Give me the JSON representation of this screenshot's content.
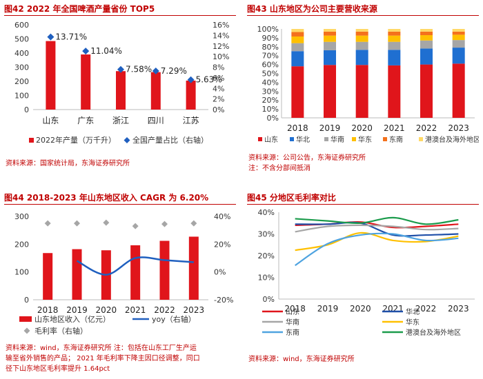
{
  "panels": {
    "p42": {
      "title": "图42 2022 年全国啤酒产量省份 TOP5",
      "source": "资料来源：国家统计局，东海证券研究所"
    },
    "p43": {
      "title": "图43 山东地区为公司主要营收来源",
      "source_line1": "资料来源：公司公告，东海证券研究所",
      "source_line2": "注：不含分部间抵消"
    },
    "p44": {
      "title": "图44 2018-2023 年山东地区收入 CAGR 为 6.20%",
      "source_lines": [
        "资料来源：wind，东海证券研究所 注：包括在山东工厂生产运",
        "输至省外销售的产品； 2021 年毛利率下降主因口径调整，同口",
        "径下山东地区毛利率提升 1.64pct"
      ]
    },
    "p45": {
      "title": "图45 分地区毛利率对比",
      "source": "资料来源：wind，东海证券研究所"
    }
  },
  "chart_data": [
    {
      "id": "fig42",
      "type": "bar",
      "categories": [
        "山东",
        "广东",
        "浙江",
        "四川",
        "江苏"
      ],
      "series": [
        {
          "name": "2022年产量（万千升）",
          "axis": "left",
          "values": [
            485,
            390,
            272,
            265,
            205
          ],
          "color": "#e0151b"
        },
        {
          "name": "全国产量占比（右轴）",
          "axis": "right",
          "marker": "diamond",
          "values": [
            13.71,
            11.04,
            7.58,
            7.29,
            5.63
          ],
          "labels": [
            "13.71%",
            "11.04%",
            "7.58%",
            "7.29%",
            "5.63%"
          ],
          "color": "#1f5fbf"
        }
      ],
      "ylim": [
        0,
        600
      ],
      "y_ticks": [
        "0",
        "100",
        "200",
        "300",
        "400",
        "500",
        "600"
      ],
      "y2lim": [
        0,
        16
      ],
      "y2_ticks": [
        "0%",
        "2%",
        "4%",
        "6%",
        "8%",
        "10%",
        "12%",
        "14%",
        "16%"
      ]
    },
    {
      "id": "fig43",
      "type": "bar",
      "stacked": true,
      "categories": [
        "2018",
        "2019",
        "2020",
        "2021",
        "2022",
        "2023"
      ],
      "series": [
        {
          "name": "山东",
          "values": [
            58,
            59.5,
            59.5,
            59,
            60,
            61
          ],
          "color": "#e0151b"
        },
        {
          "name": "华北",
          "values": [
            17,
            16.5,
            17,
            17.5,
            18,
            18
          ],
          "color": "#1f6fd1"
        },
        {
          "name": "华南",
          "values": [
            9,
            9.5,
            9,
            9,
            9,
            8.5
          ],
          "color": "#a6a6a6"
        },
        {
          "name": "华东",
          "values": [
            7.5,
            7,
            7,
            7,
            6,
            6
          ],
          "color": "#ffc000"
        },
        {
          "name": "东南",
          "values": [
            5,
            4.5,
            4.5,
            4.5,
            4,
            3.5
          ],
          "color": "#f4711c"
        },
        {
          "name": "港澳台及海外地区",
          "values": [
            3.5,
            3,
            3,
            3,
            3,
            3
          ],
          "color": "#ffd966"
        }
      ],
      "ylim": [
        0,
        100
      ],
      "y_ticks": [
        "0%",
        "10%",
        "20%",
        "30%",
        "40%",
        "50%",
        "60%",
        "70%",
        "80%",
        "90%",
        "100%"
      ]
    },
    {
      "id": "fig44",
      "type": "bar",
      "categories": [
        "2018",
        "2019",
        "2020",
        "2021",
        "2022",
        "2023"
      ],
      "series": [
        {
          "name": "山东地区收入（亿元）",
          "axis": "left",
          "kind": "bar",
          "values": [
            168,
            182,
            178,
            196,
            212,
            227
          ],
          "color": "#e0151b"
        },
        {
          "name": "yoy（右轴）",
          "axis": "right",
          "kind": "line",
          "values": [
            null,
            8.0,
            -2.0,
            10.0,
            8.5,
            7.0
          ],
          "color": "#1f5fbf"
        },
        {
          "name": "毛利率（右轴）",
          "axis": "right",
          "kind": "scatter",
          "marker": "diamond",
          "values": [
            35.0,
            35.0,
            35.5,
            33.0,
            34.5,
            35.0
          ],
          "color": "#a6a6a6"
        }
      ],
      "ylim": [
        0,
        300
      ],
      "y_ticks": [
        "0",
        "100",
        "200",
        "300"
      ],
      "y2lim": [
        -20,
        40
      ],
      "y2_ticks": [
        "-20%",
        "0%",
        "20%",
        "40%"
      ]
    },
    {
      "id": "fig45",
      "type": "line",
      "categories": [
        "2018",
        "2019",
        "2020",
        "2021",
        "2022",
        "2023"
      ],
      "series": [
        {
          "name": "山东",
          "values": [
            34.0,
            34.5,
            35.5,
            33.0,
            33.5,
            34.5
          ],
          "color": "#e0151b"
        },
        {
          "name": "华北",
          "values": [
            34.5,
            34.5,
            35.0,
            29.5,
            29.5,
            30.0
          ],
          "color": "#1f4fa8"
        },
        {
          "name": "华南",
          "values": [
            31.0,
            33.5,
            34.0,
            33.5,
            32.0,
            32.5
          ],
          "color": "#a6a6a6"
        },
        {
          "name": "华东",
          "values": [
            22.5,
            25.0,
            30.5,
            27.0,
            26.5,
            29.0
          ],
          "color": "#ffc000"
        },
        {
          "name": "东南",
          "values": [
            15.5,
            25.5,
            29.5,
            30.0,
            27.0,
            28.0
          ],
          "color": "#4ea3e0"
        },
        {
          "name": "港澳台及海外地区",
          "values": [
            37.0,
            36.0,
            35.0,
            37.5,
            34.5,
            36.5
          ],
          "color": "#1a9b4b"
        }
      ],
      "ylim": [
        0,
        40
      ],
      "y_ticks": [
        "0%",
        "10%",
        "20%",
        "30%",
        "40%"
      ]
    }
  ]
}
